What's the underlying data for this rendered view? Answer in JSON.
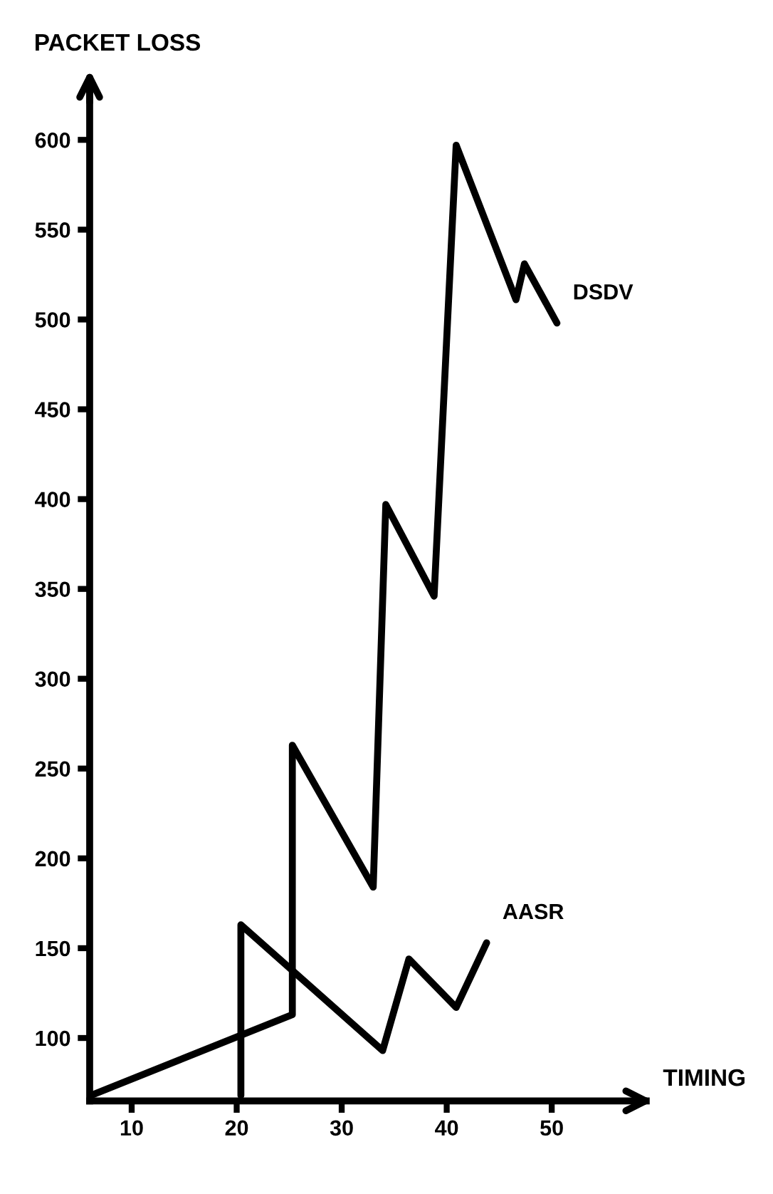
{
  "chart_data": {
    "type": "line",
    "xlabel": "TIMING",
    "ylabel": "PACKET LOSS",
    "xlim": [
      6,
      59
    ],
    "xticks": [
      10,
      20,
      30,
      40,
      50
    ],
    "ylim": [
      65,
      630
    ],
    "yticks": [
      100,
      150,
      200,
      250,
      300,
      350,
      400,
      450,
      500,
      550,
      600
    ],
    "grid": false,
    "legend": false,
    "marker": "none",
    "line_style": "solid",
    "series": [
      {
        "name": "DSDV",
        "color": "#000000",
        "x": [
          6.1,
          25.3,
          25.3,
          33.0,
          34.2,
          38.8,
          40.9,
          46.6,
          47.4,
          50.5
        ],
        "values": [
          68,
          113,
          263,
          184,
          397,
          346,
          597,
          511,
          531,
          498
        ]
      },
      {
        "name": "AASR",
        "color": "#000000",
        "x": [
          20.4,
          20.4,
          33.9,
          36.4,
          40.9,
          43.8
        ],
        "values": [
          68,
          163,
          93,
          144,
          117,
          153
        ]
      }
    ]
  }
}
